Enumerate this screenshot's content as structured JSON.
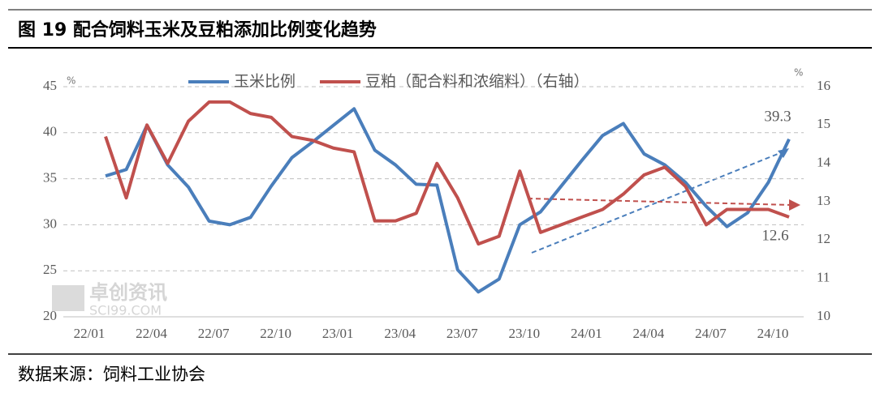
{
  "chart_data": {
    "type": "line",
    "title": "图 19 配合饲料玉米及豆粕添加比例变化趋势",
    "source": "数据来源：饲料工业协会",
    "watermark": [
      "卓创资讯",
      "SCI99.COM"
    ],
    "y_label": "%",
    "y2_label": "%",
    "categories": [
      "22/01",
      null,
      null,
      "22/04",
      null,
      null,
      "22/07",
      null,
      null,
      "22/10",
      null,
      null,
      "23/01",
      null,
      null,
      "23/04",
      null,
      null,
      "23/07",
      null,
      null,
      "23/10",
      null,
      null,
      "24/01",
      null,
      null,
      "24/04",
      null,
      null,
      "24/07",
      null,
      null,
      "24/10"
    ],
    "series": [
      {
        "name": "玉米比例",
        "color": "#4a7ebb",
        "values": [
          35.3,
          36.0,
          40.8,
          36.5,
          34.1,
          30.4,
          30.0,
          30.8,
          34.2,
          37.3,
          39.0,
          40.8,
          42.6,
          38.1,
          36.5,
          34.4,
          34.3,
          25.1,
          22.7,
          24.1,
          30.0,
          31.4,
          34.2,
          37.0,
          39.7,
          41.0,
          37.7,
          36.5,
          34.6,
          32.0,
          29.8,
          31.3,
          34.6,
          39.3
        ]
      },
      {
        "name": "豆粕（配合料和浓缩料）（右轴）",
        "color": "#c0504d",
        "axis": "y2",
        "values": [
          14.7,
          13.1,
          15.0,
          14.0,
          15.1,
          15.6,
          15.6,
          15.3,
          15.2,
          14.7,
          14.6,
          14.4,
          14.3,
          12.5,
          12.5,
          12.7,
          14.0,
          13.1,
          11.9,
          12.1,
          13.8,
          12.2,
          12.4,
          12.6,
          12.8,
          13.2,
          13.7,
          13.9,
          13.4,
          12.4,
          12.8,
          12.8,
          12.8,
          12.6
        ]
      }
    ],
    "ylim": [
      20,
      45
    ],
    "yticks": [
      20,
      25,
      30,
      35,
      40,
      45
    ],
    "y2lim": [
      10,
      16
    ],
    "y2ticks": [
      10,
      11,
      12,
      13,
      14,
      15,
      16
    ],
    "grid": true,
    "legend": "top"
  }
}
